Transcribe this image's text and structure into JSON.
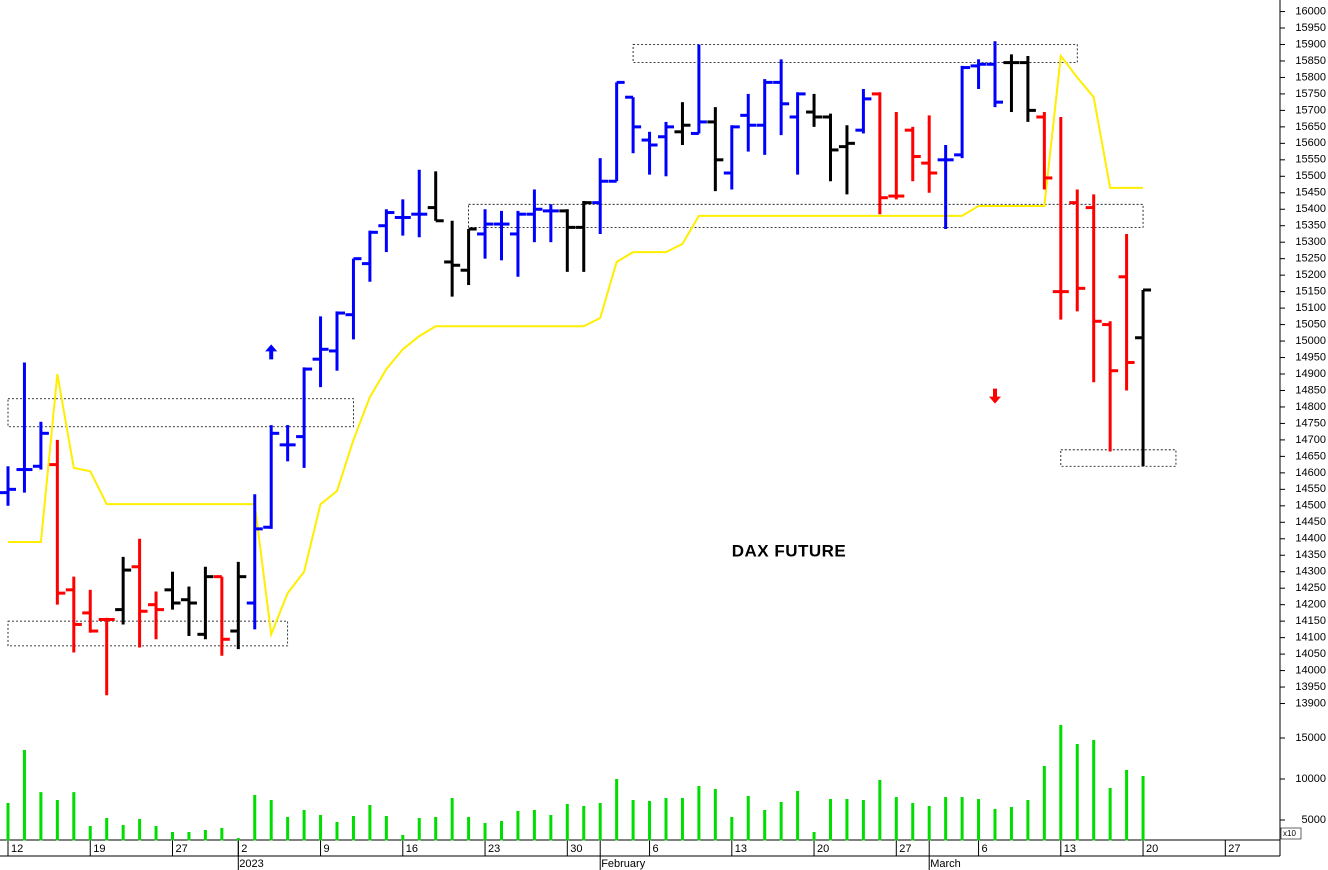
{
  "chart_data": {
    "type": "ohlc",
    "title": "DAX FUTURE",
    "categories": [
      "12",
      null,
      null,
      null,
      null,
      "19",
      null,
      null,
      null,
      null,
      "27",
      null,
      null,
      null,
      "2",
      null,
      null,
      null,
      null,
      "9",
      null,
      null,
      null,
      null,
      "16",
      null,
      null,
      null,
      null,
      "23",
      null,
      null,
      null,
      null,
      "30",
      null,
      null,
      null,
      null,
      "6",
      null,
      null,
      null,
      null,
      "13",
      null,
      null,
      null,
      null,
      "20",
      null,
      null,
      null,
      null,
      "27",
      null,
      null,
      null,
      null,
      "6",
      null,
      null,
      null,
      null,
      "13",
      null,
      null,
      null,
      null,
      "20",
      null,
      null,
      null,
      null,
      "27",
      null,
      null,
      null
    ],
    "months": [
      null,
      null,
      null,
      null,
      null,
      null,
      null,
      null,
      null,
      null,
      null,
      null,
      null,
      null,
      "2023",
      null,
      null,
      null,
      null,
      null,
      null,
      null,
      null,
      null,
      null,
      null,
      null,
      null,
      null,
      null,
      null,
      null,
      null,
      null,
      null,
      null,
      "February",
      null,
      null,
      null,
      null,
      null,
      null,
      null,
      null,
      null,
      null,
      null,
      null,
      null,
      null,
      null,
      null,
      null,
      null,
      null,
      "March",
      null,
      null,
      null,
      null,
      null,
      null,
      null,
      null,
      null,
      null,
      null,
      null,
      null,
      null,
      null,
      null,
      null,
      null,
      null,
      null,
      null
    ],
    "open": [
      14540,
      14610,
      14620,
      14625,
      14245,
      14175,
      14155,
      14185,
      14315,
      14200,
      14245,
      14215,
      14110,
      14285,
      14120,
      14205,
      14435,
      14685,
      14710,
      14945,
      14970,
      15080,
      15235,
      15350,
      15375,
      15385,
      15405,
      15240,
      15215,
      15325,
      15355,
      15325,
      15385,
      15395,
      15395,
      15345,
      15420,
      15485,
      15740,
      15610,
      15620,
      15635,
      15630,
      15665,
      15510,
      15685,
      15655,
      15785,
      15680,
      15695,
      15680,
      15590,
      15640,
      15750,
      15440,
      15640,
      15540,
      15550,
      15565,
      15835,
      15840,
      15845,
      15845,
      15680,
      15150,
      15420,
      15405,
      15050,
      15195,
      15010,
      null,
      null,
      null,
      null,
      null,
      null,
      null,
      null
    ],
    "high": [
      14620,
      14935,
      14755,
      14700,
      14285,
      14245,
      14160,
      14345,
      14400,
      14240,
      14300,
      14255,
      14315,
      14285,
      14330,
      14535,
      14745,
      14745,
      14920,
      15075,
      15090,
      15250,
      15335,
      15400,
      15430,
      15520,
      15515,
      15365,
      15340,
      15400,
      15395,
      15395,
      15460,
      15415,
      15400,
      15425,
      15555,
      15785,
      15740,
      15635,
      15665,
      15725,
      15900,
      15710,
      15655,
      15750,
      15795,
      15855,
      15755,
      15750,
      15690,
      15655,
      15765,
      15755,
      15695,
      15650,
      15685,
      15595,
      15835,
      15855,
      15910,
      15870,
      15865,
      15695,
      15680,
      15460,
      15445,
      15060,
      15325,
      15155,
      null,
      null,
      null,
      null,
      null,
      null,
      null,
      null
    ],
    "low": [
      14500,
      14540,
      14610,
      14200,
      14055,
      14115,
      13925,
      14140,
      14070,
      14095,
      14185,
      14105,
      14095,
      14045,
      14065,
      14125,
      14430,
      14635,
      14615,
      14860,
      14910,
      15005,
      15180,
      15270,
      15320,
      15315,
      15365,
      15135,
      15170,
      15250,
      15245,
      15195,
      15300,
      15300,
      15210,
      15210,
      15325,
      15485,
      15570,
      15505,
      15500,
      15595,
      15630,
      15455,
      15460,
      15575,
      15565,
      15625,
      15505,
      15650,
      15485,
      15445,
      15630,
      15385,
      15430,
      15485,
      15450,
      15340,
      15555,
      15765,
      15710,
      15695,
      15665,
      15460,
      15065,
      15090,
      14875,
      14665,
      14850,
      14620,
      null,
      null,
      null,
      null,
      null,
      null,
      null,
      null
    ],
    "close": [
      14550,
      14610,
      14720,
      14235,
      14140,
      14120,
      14155,
      14305,
      14180,
      14185,
      14205,
      14205,
      14285,
      14095,
      14285,
      14430,
      14720,
      14685,
      14915,
      14975,
      15085,
      15250,
      15330,
      15390,
      15375,
      15385,
      15365,
      15230,
      15340,
      15355,
      15355,
      15385,
      15400,
      15395,
      15345,
      15420,
      15485,
      15785,
      15650,
      15595,
      15650,
      15655,
      15665,
      15550,
      15650,
      15655,
      15785,
      15720,
      15750,
      15680,
      15580,
      15600,
      15735,
      15435,
      15440,
      15560,
      15510,
      15550,
      15830,
      15840,
      15725,
      15845,
      15700,
      15495,
      15150,
      15160,
      15060,
      14910,
      14935,
      15155,
      null,
      null,
      null,
      null,
      null,
      null,
      null,
      null
    ],
    "bar_colors": [
      "#0000ff",
      "#0000ff",
      "#0000ff",
      "#ff0000",
      "#ff0000",
      "#ff0000",
      "#ff0000",
      "#000000",
      "#ff0000",
      "#ff0000",
      "#000000",
      "#000000",
      "#000000",
      "#ff0000",
      "#000000",
      "#0000ff",
      "#0000ff",
      "#0000ff",
      "#0000ff",
      "#0000ff",
      "#0000ff",
      "#0000ff",
      "#0000ff",
      "#0000ff",
      "#0000ff",
      "#0000ff",
      "#000000",
      "#000000",
      "#000000",
      "#0000ff",
      "#0000ff",
      "#0000ff",
      "#0000ff",
      "#0000ff",
      "#000000",
      "#000000",
      "#0000ff",
      "#0000ff",
      "#0000ff",
      "#0000ff",
      "#0000ff",
      "#000000",
      "#0000ff",
      "#000000",
      "#0000ff",
      "#0000ff",
      "#0000ff",
      "#0000ff",
      "#0000ff",
      "#000000",
      "#000000",
      "#000000",
      "#0000ff",
      "#ff0000",
      "#ff0000",
      "#ff0000",
      "#ff0000",
      "#0000ff",
      "#0000ff",
      "#0000ff",
      "#0000ff",
      "#000000",
      "#000000",
      "#ff0000",
      "#ff0000",
      "#ff0000",
      "#ff0000",
      "#ff0000",
      "#ff0000",
      "#000000",
      null,
      null,
      null,
      null,
      null,
      null,
      null,
      null
    ],
    "line": {
      "color": "#ffee00",
      "values": [
        14390,
        14390,
        14390,
        14900,
        14615,
        14605,
        14505,
        14505,
        14505,
        14505,
        14505,
        14505,
        14505,
        14505,
        14505,
        14505,
        14110,
        14235,
        14300,
        14505,
        14545,
        14700,
        14830,
        14915,
        14975,
        15015,
        15045,
        15045,
        15045,
        15045,
        15045,
        15045,
        15045,
        15045,
        15045,
        15045,
        15070,
        15240,
        15270,
        15270,
        15270,
        15295,
        15380,
        15380,
        15380,
        15380,
        15380,
        15380,
        15380,
        15380,
        15380,
        15380,
        15380,
        15380,
        15380,
        15380,
        15380,
        15380,
        15380,
        15410,
        15410,
        15410,
        15410,
        15410,
        15865,
        15800,
        15740,
        15465,
        15465,
        15465,
        null,
        null,
        null,
        null,
        null,
        null,
        null,
        null
      ]
    },
    "ylim": [
      13850,
      16035
    ],
    "yticks": [
      13900,
      13950,
      14000,
      14050,
      14100,
      14150,
      14200,
      14250,
      14300,
      14350,
      14400,
      14450,
      14500,
      14550,
      14600,
      14650,
      14700,
      14750,
      14800,
      14850,
      14900,
      14950,
      15000,
      15050,
      15100,
      15150,
      15200,
      15250,
      15300,
      15350,
      15400,
      15450,
      15500,
      15550,
      15600,
      15650,
      15700,
      15750,
      15800,
      15850,
      15900,
      15950,
      16000
    ],
    "grid": false,
    "boxes": [
      {
        "x": [
          0,
          21
        ],
        "y": [
          14740,
          14825
        ]
      },
      {
        "x": [
          0,
          17
        ],
        "y": [
          14075,
          14150
        ]
      },
      {
        "x": [
          28,
          69
        ],
        "y": [
          15345,
          15415
        ]
      },
      {
        "x": [
          38,
          65
        ],
        "y": [
          15845,
          15900
        ]
      },
      {
        "x": [
          64,
          71
        ],
        "y": [
          14620,
          14670
        ]
      }
    ],
    "arrows": [
      {
        "index": 16,
        "value": 14990,
        "direction": "up",
        "color": "#0000ff"
      },
      {
        "index": 60,
        "value": 14810,
        "direction": "down",
        "color": "#ff0000"
      }
    ],
    "volume": {
      "color": "#00dd00",
      "unit_label": "x10",
      "values": [
        7070,
        13540,
        8400,
        7440,
        8400,
        4270,
        5240,
        4390,
        5120,
        4270,
        3540,
        3540,
        3780,
        4020,
        2800,
        8050,
        7440,
        5370,
        6220,
        5610,
        4760,
        5490,
        6830,
        5490,
        3170,
        5240,
        5370,
        7680,
        5370,
        4630,
        4880,
        6100,
        6220,
        5610,
        6950,
        6710,
        7070,
        10000,
        7440,
        7320,
        7680,
        7680,
        9150,
        8780,
        5370,
        7930,
        6220,
        7200,
        8540,
        3540,
        7560,
        7560,
        7440,
        9880,
        7800,
        7070,
        6710,
        7800,
        7800,
        7560,
        6340,
        6590,
        7440,
        11590,
        16590,
        14270,
        14760,
        8900,
        11100,
        10370,
        null,
        null,
        null,
        null,
        null,
        null,
        null,
        null
      ],
      "ylim": [
        2500,
        17500
      ],
      "yticks": [
        5000,
        10000,
        15000
      ]
    }
  }
}
